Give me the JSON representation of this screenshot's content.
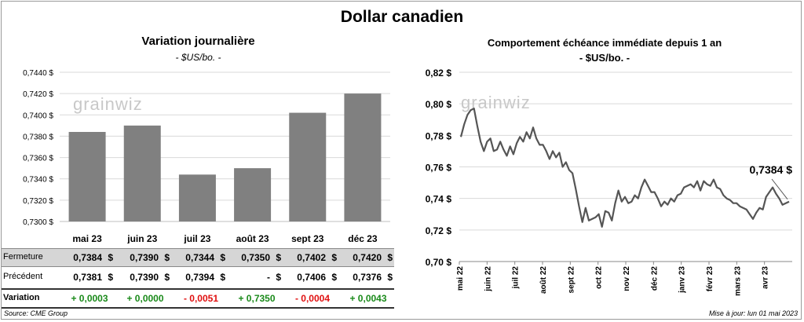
{
  "main_title": "Dollar canadien",
  "left_title": "Variation  journalière",
  "left_subtitle": "- $US/bo. -",
  "right_title": "Comportement échéance immédiate depuis 1 an",
  "right_subtitle": "- $US/bo. -",
  "watermark": "grainwiz",
  "table": {
    "labels": {
      "fermeture": "Fermeture",
      "precedent": "Précédent",
      "variation": "Variation"
    },
    "currency": "$",
    "fermeture": [
      "0,7384",
      "0,7390",
      "0,7344",
      "0,7350",
      "0,7402",
      "0,7420"
    ],
    "precedent": [
      "0,7381",
      "0,7390",
      "0,7394",
      "-",
      "0,7406",
      "0,7376"
    ],
    "variation": [
      "+ 0,0003",
      "+ 0,0000",
      "- 0,0051",
      "+ 0,7350",
      "- 0,0004",
      "+ 0,0043"
    ]
  },
  "source": "Source: CME Group",
  "update": "Mise à jour: lun 01 mai 2023",
  "colors": {
    "bar": "#808080",
    "line": "#555555",
    "positive": "#1a8a1a",
    "negative": "#e01010"
  },
  "chart_data": [
    {
      "type": "bar",
      "title": "Variation  journalière",
      "subtitle": "- $US/bo. -",
      "categories": [
        "mai 23",
        "juin 23",
        "juil 23",
        "août 23",
        "sept 23",
        "déc 23"
      ],
      "values": [
        0.7384,
        0.739,
        0.7344,
        0.735,
        0.7402,
        0.742
      ],
      "ylim": [
        0.73,
        0.744
      ],
      "yticks": [
        0.73,
        0.732,
        0.734,
        0.736,
        0.738,
        0.74,
        0.742,
        0.744
      ],
      "ytick_labels": [
        "0,7300 $",
        "0,7320 $",
        "0,7340 $",
        "0,7360 $",
        "0,7380 $",
        "0,7400 $",
        "0,7420 $",
        "0,7440 $"
      ],
      "grid": true
    },
    {
      "type": "line",
      "title": "Comportement échéance immédiate depuis 1 an",
      "subtitle": "- $US/bo. -",
      "x_labels": [
        "mai 22",
        "juin 22",
        "juil 22",
        "août 22",
        "sept 22",
        "oct 22",
        "nov 22",
        "déc 22",
        "janv 23",
        "févr 23",
        "mars 23",
        "avr 23"
      ],
      "ylim": [
        0.7,
        0.82
      ],
      "yticks": [
        0.7,
        0.72,
        0.74,
        0.76,
        0.78,
        0.8,
        0.82
      ],
      "ytick_labels": [
        "0,70 $",
        "0,72 $",
        "0,74 $",
        "0,76 $",
        "0,78 $",
        "0,80 $",
        "0,82 $"
      ],
      "last_value_label": "0,7384 $",
      "grid": true,
      "values": [
        0.779,
        0.787,
        0.793,
        0.796,
        0.797,
        0.786,
        0.776,
        0.77,
        0.776,
        0.778,
        0.77,
        0.771,
        0.776,
        0.771,
        0.767,
        0.773,
        0.768,
        0.775,
        0.779,
        0.776,
        0.782,
        0.778,
        0.785,
        0.778,
        0.774,
        0.774,
        0.77,
        0.765,
        0.77,
        0.766,
        0.769,
        0.76,
        0.763,
        0.758,
        0.756,
        0.746,
        0.735,
        0.725,
        0.734,
        0.726,
        0.727,
        0.728,
        0.73,
        0.722,
        0.732,
        0.731,
        0.726,
        0.737,
        0.745,
        0.738,
        0.741,
        0.737,
        0.738,
        0.742,
        0.74,
        0.747,
        0.752,
        0.748,
        0.744,
        0.744,
        0.74,
        0.735,
        0.738,
        0.736,
        0.74,
        0.738,
        0.742,
        0.743,
        0.747,
        0.748,
        0.749,
        0.747,
        0.751,
        0.745,
        0.751,
        0.749,
        0.748,
        0.752,
        0.747,
        0.746,
        0.742,
        0.74,
        0.739,
        0.737,
        0.737,
        0.735,
        0.734,
        0.733,
        0.73,
        0.727,
        0.731,
        0.734,
        0.733,
        0.741,
        0.744,
        0.747,
        0.743,
        0.74,
        0.736,
        0.737,
        0.738
      ]
    }
  ]
}
